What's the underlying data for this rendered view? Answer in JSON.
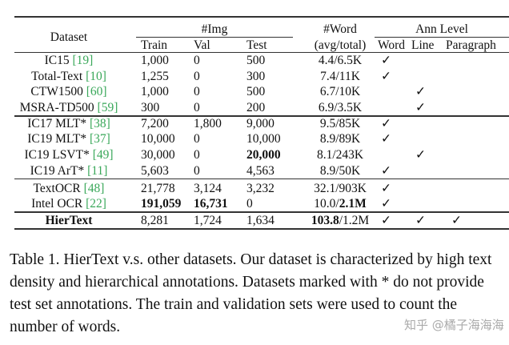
{
  "table": {
    "headers": {
      "dataset": "Dataset",
      "img_group": "#Img",
      "train": "Train",
      "val": "Val",
      "test": "Test",
      "word_top": "#Word",
      "word_bottom": "(avg/total)",
      "ann_group": "Ann Level",
      "ann_word": "Word",
      "ann_line": "Line",
      "ann_paragraph": "Paragraph"
    },
    "check": "✓",
    "rows": [
      {
        "name": "IC15 ",
        "ref": "[19]",
        "train": "1,000",
        "val": "0",
        "test": "500",
        "avg": "4.4",
        "total": "/6.5K",
        "ann": [
          1,
          0,
          0
        ]
      },
      {
        "name": "Total-Text ",
        "ref": "[10]",
        "train": "1,255",
        "val": "0",
        "test": "300",
        "avg": "7.4",
        "total": "/11K",
        "ann": [
          1,
          0,
          0
        ]
      },
      {
        "name": "CTW1500 ",
        "ref": "[60]",
        "train": "1,000",
        "val": "0",
        "test": "500",
        "avg": "6.7",
        "total": "/10K",
        "ann": [
          0,
          1,
          0
        ]
      },
      {
        "name": "MSRA-TD500 ",
        "ref": "[59]",
        "train": "300",
        "val": "0",
        "test": "200",
        "avg": "6.9",
        "total": "/3.5K",
        "ann": [
          0,
          1,
          0
        ]
      },
      {
        "name": "IC17 MLT* ",
        "ref": "[38]",
        "train": "7,200",
        "val": "1,800",
        "test": "9,000",
        "avg": "9.5",
        "total": "/85K",
        "ann": [
          1,
          0,
          0
        ]
      },
      {
        "name": "IC19 MLT* ",
        "ref": "[37]",
        "train": "10,000",
        "val": "0",
        "test": "10,000",
        "avg": "8.9",
        "total": "/89K",
        "ann": [
          1,
          0,
          0
        ]
      },
      {
        "name": "IC19 LSVT* ",
        "ref": "[49]",
        "train": "30,000",
        "val": "0",
        "test": "20,000",
        "test_bold": true,
        "avg": "8.1",
        "total": "/243K",
        "ann": [
          0,
          1,
          0
        ]
      },
      {
        "name": "IC19 ArT* ",
        "ref": "[11]",
        "train": "5,603",
        "val": "0",
        "test": "4,563",
        "avg": "8.9",
        "total": "/50K",
        "ann": [
          1,
          0,
          0
        ]
      },
      {
        "name": "TextOCR ",
        "ref": "[48]",
        "train": "21,778",
        "val": "3,124",
        "test": "3,232",
        "avg": "32.1",
        "total": "/903K",
        "ann": [
          1,
          0,
          0
        ]
      },
      {
        "name": "Intel OCR ",
        "ref": "[22]",
        "train": "191,059",
        "train_bold": true,
        "val": "16,731",
        "val_bold": true,
        "test": "0",
        "avg": "10.0/",
        "total": "2.1M",
        "total_bold": true,
        "ann": [
          1,
          0,
          0
        ]
      },
      {
        "name": "HierText",
        "ref": "",
        "name_bold": true,
        "train": "8,281",
        "val": "1,724",
        "test": "1,634",
        "avg": "103.8",
        "avg_bold": true,
        "total": "/1.2M",
        "ann": [
          1,
          1,
          1
        ]
      }
    ]
  },
  "caption": "Table 1. HierText v.s. other datasets. Our dataset is characterized by high text density and hierarchical annotations. Datasets marked with * do not provide test set annotations. The train and validation sets were used to count the number of words.",
  "watermark": "知乎 @橘子海海海"
}
